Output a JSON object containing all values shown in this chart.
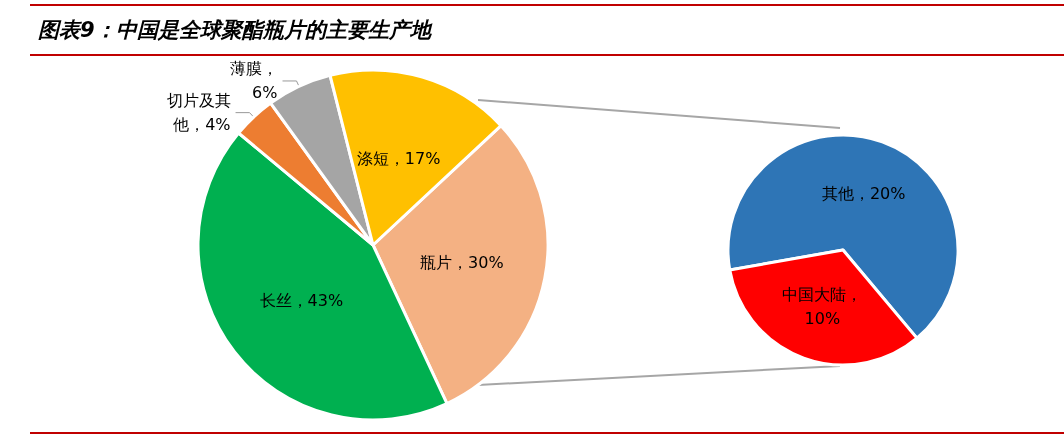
{
  "chart_data": [
    {
      "type": "pie",
      "title": "图表9：中国是全球聚酯瓶片的主要生产地",
      "categories": [
        "瓶片",
        "长丝",
        "切片及其他",
        "薄膜",
        "涤短"
      ],
      "values": [
        30,
        43,
        4,
        6,
        17
      ],
      "colors": [
        "#f4b183",
        "#00b050",
        "#ed7d31",
        "#a5a5a5",
        "#ffc000"
      ],
      "value_labels": [
        "，30%",
        "，43%",
        "，4%",
        "，6%",
        "，17%"
      ]
    },
    {
      "type": "pie",
      "categories": [
        "其他",
        "中国大陆"
      ],
      "values": [
        20,
        10
      ],
      "colors": [
        "#2e75b6",
        "#ff0000"
      ],
      "value_labels": [
        "，20%",
        "，10%"
      ]
    }
  ]
}
